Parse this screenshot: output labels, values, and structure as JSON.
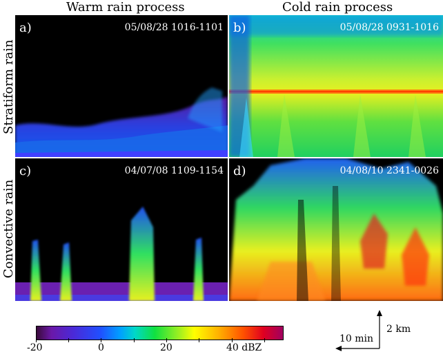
{
  "columns": {
    "warm": "Warm rain process",
    "cold": "Cold rain process"
  },
  "rows": {
    "stratiform": "Stratiform rain",
    "convective": "Convective rain"
  },
  "panels": {
    "a": {
      "label": "a)",
      "info": "05/08/28   1016-1101"
    },
    "b": {
      "label": "b)",
      "info": "05/08/28   0931-1016"
    },
    "c": {
      "label": "c)",
      "info": "04/07/08   1109-1154"
    },
    "d": {
      "label": "d)",
      "info": "04/08/10   2341-0026"
    }
  },
  "colorbar": {
    "ticks": [
      "-20",
      "0",
      "20",
      "40 dBZ"
    ]
  },
  "scale": {
    "time": "10 min",
    "height": "2 km"
  }
}
